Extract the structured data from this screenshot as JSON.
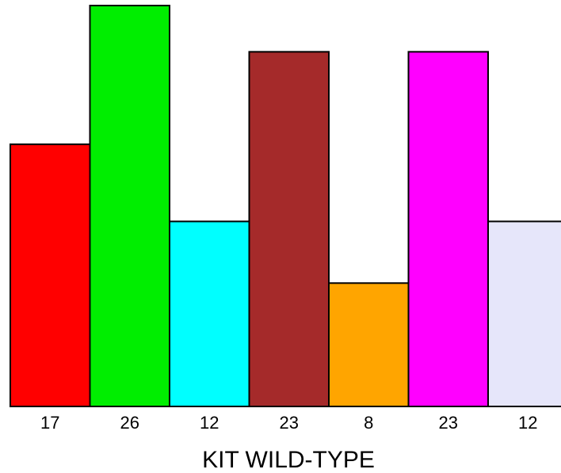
{
  "chart_data": {
    "type": "bar",
    "xlabel": "KIT WILD-TYPE",
    "ylabel": "",
    "ylim": [
      0,
      26
    ],
    "grid": false,
    "categories": [
      "17",
      "26",
      "12",
      "23",
      "8",
      "23",
      "12"
    ],
    "values": [
      17,
      26,
      12,
      23,
      8,
      23,
      12
    ],
    "colors": [
      "#ff0000",
      "#00ee00",
      "#00ffff",
      "#a52a2a",
      "#ffa500",
      "#ff00ff",
      "#e6e6fa"
    ]
  }
}
